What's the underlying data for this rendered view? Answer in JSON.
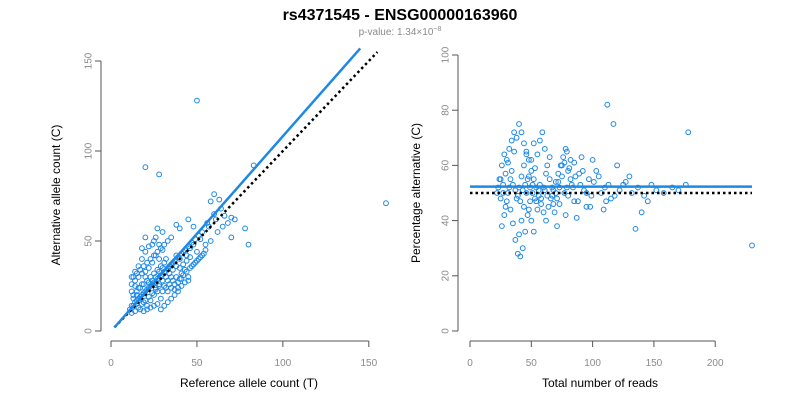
{
  "title": "rs4371545 - ENSG00000163960",
  "subtitle": {
    "prefix": "p-value: 1.34×10",
    "exponent": "−8"
  },
  "colors": {
    "points": "#1e88e5",
    "fit_line": "#1e88e5",
    "reference_line": "#000000",
    "tick_text": "#8a8a8a"
  },
  "chart_data": [
    {
      "type": "scatter",
      "xlabel": "Reference allele count (T)",
      "ylabel": "Alternative allele count (C)",
      "xlim": [
        0,
        160
      ],
      "ylim": [
        0,
        155
      ],
      "xticks": [
        0,
        50,
        100,
        150
      ],
      "yticks": [
        0,
        50,
        100,
        150
      ],
      "fit_line": {
        "from": [
          2,
          2
        ],
        "to": [
          145,
          157
        ],
        "style": "solid"
      },
      "reference_line": {
        "from": [
          2,
          2
        ],
        "to": [
          155,
          155
        ],
        "style": "dotted"
      },
      "points": [
        [
          50,
          128
        ],
        [
          28,
          87
        ],
        [
          20,
          91
        ],
        [
          160,
          71
        ],
        [
          83,
          92
        ],
        [
          60,
          76
        ],
        [
          63,
          73
        ],
        [
          58,
          72
        ],
        [
          80,
          48
        ],
        [
          78,
          57
        ],
        [
          72,
          62
        ],
        [
          70,
          52
        ],
        [
          48,
          58
        ],
        [
          45,
          62
        ],
        [
          40,
          57
        ],
        [
          38,
          59
        ],
        [
          35,
          52
        ],
        [
          33,
          50
        ],
        [
          30,
          55
        ],
        [
          27,
          57
        ],
        [
          25,
          50
        ],
        [
          22,
          47
        ],
        [
          20,
          52
        ],
        [
          18,
          46
        ],
        [
          48,
          48
        ],
        [
          52,
          51
        ],
        [
          55,
          45
        ],
        [
          44,
          42
        ],
        [
          46,
          46
        ],
        [
          42,
          44
        ],
        [
          40,
          40
        ],
        [
          38,
          42
        ],
        [
          36,
          38
        ],
        [
          34,
          36
        ],
        [
          32,
          40
        ],
        [
          30,
          35
        ],
        [
          28,
          33
        ],
        [
          26,
          30
        ],
        [
          24,
          28
        ],
        [
          22,
          27
        ],
        [
          20,
          30
        ],
        [
          18,
          26
        ],
        [
          16,
          24
        ],
        [
          14,
          25
        ],
        [
          12,
          22
        ],
        [
          15,
          20
        ],
        [
          17,
          18
        ],
        [
          19,
          16
        ],
        [
          21,
          14
        ],
        [
          23,
          17
        ],
        [
          25,
          20
        ],
        [
          27,
          22
        ],
        [
          29,
          18
        ],
        [
          31,
          25
        ],
        [
          33,
          28
        ],
        [
          35,
          30
        ],
        [
          37,
          26
        ],
        [
          39,
          24
        ],
        [
          41,
          32
        ],
        [
          43,
          34
        ],
        [
          45,
          30
        ],
        [
          47,
          36
        ],
        [
          49,
          38
        ],
        [
          51,
          40
        ],
        [
          53,
          42
        ],
        [
          30,
          45
        ],
        [
          28,
          40
        ],
        [
          26,
          42
        ],
        [
          24,
          38
        ],
        [
          22,
          35
        ],
        [
          20,
          33
        ],
        [
          18,
          32
        ],
        [
          16,
          30
        ],
        [
          14,
          28
        ],
        [
          12,
          26
        ],
        [
          13,
          18
        ],
        [
          15,
          15
        ],
        [
          17,
          12
        ],
        [
          19,
          11
        ],
        [
          21,
          12
        ],
        [
          23,
          13
        ],
        [
          25,
          14
        ],
        [
          27,
          15
        ],
        [
          29,
          12
        ],
        [
          31,
          14
        ],
        [
          33,
          16
        ],
        [
          35,
          18
        ],
        [
          37,
          20
        ],
        [
          39,
          22
        ],
        [
          41,
          25
        ],
        [
          43,
          27
        ],
        [
          45,
          28
        ],
        [
          12,
          14
        ],
        [
          14,
          16
        ],
        [
          16,
          18
        ],
        [
          18,
          20
        ],
        [
          20,
          22
        ],
        [
          22,
          24
        ],
        [
          24,
          26
        ],
        [
          26,
          24
        ],
        [
          28,
          26
        ],
        [
          30,
          28
        ],
        [
          32,
          30
        ],
        [
          34,
          32
        ],
        [
          36,
          34
        ],
        [
          38,
          36
        ],
        [
          40,
          35
        ],
        [
          42,
          37
        ],
        [
          44,
          39
        ],
        [
          46,
          41
        ],
        [
          50,
          44
        ],
        [
          55,
          48
        ],
        [
          58,
          50
        ],
        [
          62,
          55
        ],
        [
          65,
          58
        ],
        [
          68,
          60
        ],
        [
          70,
          63
        ],
        [
          56,
          60
        ],
        [
          60,
          65
        ],
        [
          64,
          68
        ],
        [
          13,
          30
        ],
        [
          15,
          32
        ],
        [
          17,
          34
        ],
        [
          19,
          36
        ],
        [
          21,
          38
        ],
        [
          23,
          40
        ],
        [
          25,
          42
        ],
        [
          27,
          44
        ],
        [
          29,
          46
        ],
        [
          31,
          48
        ],
        [
          12,
          10
        ],
        [
          14,
          11
        ],
        [
          16,
          13
        ],
        [
          18,
          15
        ],
        [
          20,
          17
        ],
        [
          22,
          19
        ],
        [
          24,
          21
        ],
        [
          26,
          23
        ],
        [
          28,
          25
        ],
        [
          30,
          22
        ],
        [
          32,
          24
        ],
        [
          34,
          26
        ],
        [
          36,
          28
        ],
        [
          38,
          30
        ],
        [
          40,
          29
        ],
        [
          42,
          31
        ],
        [
          44,
          33
        ],
        [
          46,
          35
        ],
        [
          48,
          37
        ],
        [
          50,
          39
        ],
        [
          52,
          41
        ],
        [
          54,
          43
        ],
        [
          13,
          20
        ],
        [
          15,
          22
        ],
        [
          17,
          24
        ],
        [
          19,
          26
        ],
        [
          21,
          28
        ],
        [
          23,
          30
        ],
        [
          25,
          32
        ],
        [
          27,
          34
        ],
        [
          29,
          36
        ],
        [
          31,
          38
        ],
        [
          33,
          35
        ],
        [
          35,
          37
        ],
        [
          37,
          39
        ],
        [
          39,
          41
        ],
        [
          41,
          43
        ],
        [
          43,
          45
        ],
        [
          45,
          47
        ],
        [
          47,
          49
        ],
        [
          49,
          51
        ],
        [
          51,
          53
        ],
        [
          53,
          55
        ],
        [
          57,
          58
        ],
        [
          61,
          62
        ],
        [
          66,
          64
        ],
        [
          11,
          12
        ],
        [
          13,
          14
        ],
        [
          15,
          17
        ],
        [
          17,
          19
        ],
        [
          19,
          21
        ],
        [
          21,
          23
        ],
        [
          23,
          25
        ],
        [
          25,
          27
        ],
        [
          27,
          29
        ],
        [
          29,
          31
        ],
        [
          31,
          33
        ],
        [
          33,
          22
        ],
        [
          35,
          24
        ],
        [
          37,
          23
        ],
        [
          39,
          27
        ],
        [
          41,
          29
        ],
        [
          18,
          40
        ],
        [
          20,
          44
        ],
        [
          16,
          36
        ],
        [
          14,
          33
        ],
        [
          12,
          30
        ],
        [
          24,
          48
        ],
        [
          26,
          52
        ],
        [
          28,
          48
        ]
      ]
    },
    {
      "type": "scatter",
      "xlabel": "Total number of reads",
      "ylabel": "Percentage alternative (C)",
      "xlim": [
        0,
        230
      ],
      "ylim": [
        0,
        100
      ],
      "xticks": [
        0,
        50,
        100,
        150,
        200
      ],
      "yticks": [
        0,
        20,
        40,
        60,
        80,
        100
      ],
      "fit_line": {
        "from": [
          0,
          52.3
        ],
        "to": [
          230,
          52.3
        ],
        "style": "solid"
      },
      "reference_line": {
        "from": [
          0,
          50
        ],
        "to": [
          230,
          50
        ],
        "style": "dotted"
      },
      "points": [
        [
          178,
          72
        ],
        [
          230,
          31
        ],
        [
          112,
          82
        ],
        [
          117,
          75
        ],
        [
          176,
          53
        ],
        [
          135,
          37
        ],
        [
          140,
          43
        ],
        [
          145,
          47
        ],
        [
          130,
          56
        ],
        [
          125,
          53
        ],
        [
          120,
          60
        ],
        [
          115,
          48
        ],
        [
          110,
          52
        ],
        [
          105,
          56
        ],
        [
          100,
          62
        ],
        [
          98,
          45
        ],
        [
          95,
          50
        ],
        [
          92,
          58
        ],
        [
          90,
          53
        ],
        [
          88,
          47
        ],
        [
          85,
          61
        ],
        [
          82,
          55
        ],
        [
          80,
          49
        ],
        [
          78,
          42
        ],
        [
          75,
          60
        ],
        [
          72,
          54
        ],
        [
          70,
          50
        ],
        [
          68,
          46
        ],
        [
          65,
          63
        ],
        [
          62,
          57
        ],
        [
          60,
          52
        ],
        [
          58,
          48
        ],
        [
          55,
          44
        ],
        [
          52,
          68
        ],
        [
          50,
          62
        ],
        [
          48,
          56
        ],
        [
          46,
          50
        ],
        [
          44,
          45
        ],
        [
          42,
          40
        ],
        [
          40,
          35
        ],
        [
          38,
          70
        ],
        [
          36,
          65
        ],
        [
          34,
          58
        ],
        [
          32,
          52
        ],
        [
          30,
          47
        ],
        [
          28,
          42
        ],
        [
          26,
          38
        ],
        [
          24,
          55
        ],
        [
          22,
          50
        ],
        [
          25,
          48
        ],
        [
          27,
          53
        ],
        [
          29,
          57
        ],
        [
          31,
          61
        ],
        [
          33,
          44
        ],
        [
          35,
          39
        ],
        [
          37,
          33
        ],
        [
          39,
          28
        ],
        [
          41,
          27
        ],
        [
          43,
          30
        ],
        [
          45,
          36
        ],
        [
          47,
          42
        ],
        [
          49,
          47
        ],
        [
          51,
          53
        ],
        [
          53,
          59
        ],
        [
          55,
          64
        ],
        [
          57,
          69
        ],
        [
          59,
          72
        ],
        [
          61,
          66
        ],
        [
          63,
          60
        ],
        [
          65,
          55
        ],
        [
          67,
          49
        ],
        [
          69,
          43
        ],
        [
          71,
          38
        ],
        [
          73,
          52
        ],
        [
          75,
          56
        ],
        [
          77,
          61
        ],
        [
          79,
          65
        ],
        [
          81,
          59
        ],
        [
          83,
          53
        ],
        [
          85,
          47
        ],
        [
          87,
          41
        ],
        [
          89,
          57
        ],
        [
          91,
          63
        ],
        [
          93,
          51
        ],
        [
          95,
          45
        ],
        [
          97,
          55
        ],
        [
          99,
          49
        ],
        [
          101,
          54
        ],
        [
          103,
          58
        ],
        [
          107,
          50
        ],
        [
          109,
          44
        ],
        [
          111,
          47
        ],
        [
          113,
          53
        ],
        [
          118,
          49
        ],
        [
          122,
          51
        ],
        [
          127,
          54
        ],
        [
          132,
          50
        ],
        [
          137,
          52
        ],
        [
          142,
          49
        ],
        [
          148,
          53
        ],
        [
          152,
          51
        ],
        [
          158,
          50
        ],
        [
          165,
          52
        ],
        [
          170,
          51
        ],
        [
          40,
          75
        ],
        [
          42,
          72
        ],
        [
          44,
          68
        ],
        [
          46,
          65
        ],
        [
          48,
          62
        ],
        [
          50,
          58
        ],
        [
          52,
          55
        ],
        [
          54,
          52
        ],
        [
          56,
          49
        ],
        [
          58,
          46
        ],
        [
          60,
          43
        ],
        [
          62,
          40
        ],
        [
          64,
          45
        ],
        [
          66,
          48
        ],
        [
          68,
          51
        ],
        [
          70,
          54
        ],
        [
          72,
          57
        ],
        [
          74,
          60
        ],
        [
          76,
          63
        ],
        [
          78,
          66
        ],
        [
          80,
          58
        ],
        [
          82,
          62
        ],
        [
          84,
          52
        ],
        [
          86,
          56
        ],
        [
          26,
          60
        ],
        [
          28,
          64
        ],
        [
          30,
          62
        ],
        [
          32,
          66
        ],
        [
          34,
          69
        ],
        [
          36,
          72
        ],
        [
          38,
          48
        ],
        [
          40,
          52
        ],
        [
          42,
          56
        ],
        [
          44,
          60
        ],
        [
          46,
          64
        ],
        [
          48,
          44
        ],
        [
          50,
          40
        ],
        [
          52,
          36
        ],
        [
          54,
          47
        ],
        [
          56,
          51
        ],
        [
          23,
          52
        ],
        [
          25,
          55
        ],
        [
          27,
          50
        ],
        [
          29,
          45
        ],
        [
          31,
          50
        ],
        [
          33,
          55
        ],
        [
          35,
          53
        ],
        [
          37,
          51
        ],
        [
          39,
          49
        ],
        [
          41,
          47
        ],
        [
          43,
          51
        ],
        [
          45,
          53
        ],
        [
          47,
          55
        ],
        [
          49,
          52
        ],
        [
          51,
          50
        ],
        [
          53,
          48
        ],
        [
          57,
          53
        ],
        [
          61,
          51
        ],
        [
          63,
          49
        ],
        [
          67,
          52
        ],
        [
          71,
          48
        ],
        [
          73,
          46
        ],
        [
          77,
          50
        ],
        [
          79,
          52
        ]
      ]
    }
  ]
}
